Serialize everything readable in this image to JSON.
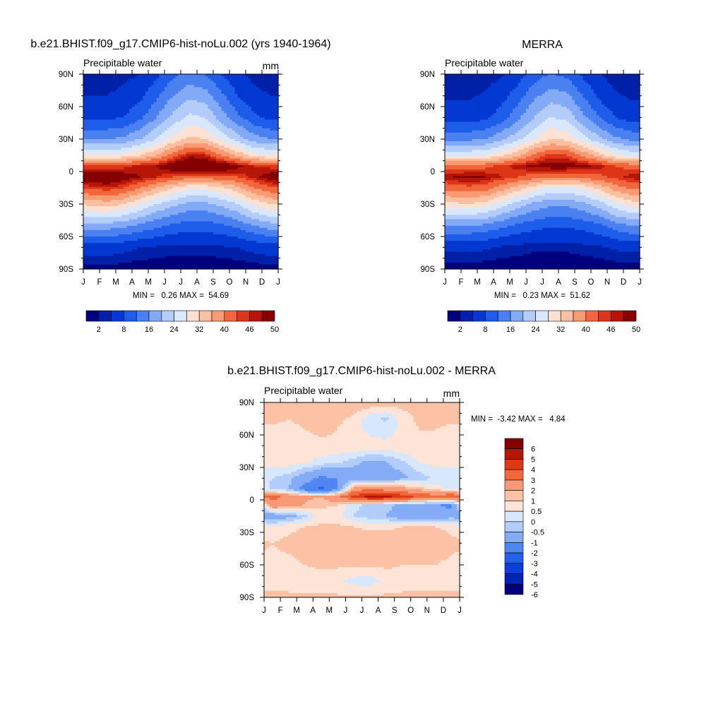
{
  "colors": {
    "seq_palette": [
      "#00007f",
      "#0020a8",
      "#0339d0",
      "#1e5cea",
      "#4a80f0",
      "#82aaf6",
      "#b3ccfa",
      "#d9e8fc",
      "#fde2d3",
      "#fcbfa0",
      "#f89a72",
      "#f2663c",
      "#dd3518",
      "#b51607",
      "#860000"
    ],
    "diff_palette": [
      "#00007f",
      "#0024b4",
      "#0a40d8",
      "#2460ec",
      "#4f86f2",
      "#84acf6",
      "#b3cdfa",
      "#d8e8fc",
      "#fde4d6",
      "#fcc2a6",
      "#f79a75",
      "#f0693d",
      "#dc3a16",
      "#b51707",
      "#860000"
    ]
  },
  "chart_data": [
    {
      "type": "heatmap",
      "title": "b.e21.BHIST.f09_g17.CMIP6-hist-noLu.002 (yrs 1940-1964)",
      "left_label": "Precipitable water",
      "right_label": "mm",
      "x_ticks": [
        "J",
        "F",
        "M",
        "A",
        "M",
        "J",
        "J",
        "A",
        "S",
        "O",
        "N",
        "D",
        "J"
      ],
      "y_ticks": [
        "90N",
        "60N",
        "30N",
        "0",
        "30S",
        "60S",
        "90S"
      ],
      "stats": "MIN =   0.26 MAX =  54.69",
      "min": 0.26,
      "max": 54.69,
      "colorbar_levels": [
        0,
        2,
        4,
        8,
        12,
        16,
        20,
        24,
        28,
        32,
        36,
        40,
        44,
        46,
        48,
        50
      ],
      "colorbar_labels": [
        "2",
        "8",
        "16",
        "24",
        "32",
        "40",
        "46",
        "50"
      ],
      "field": {
        "lat_nodes": [
          90,
          70,
          50,
          30,
          15,
          5,
          -5,
          -15,
          -30,
          -50,
          -70,
          -90
        ],
        "months": [
          "Jan",
          "Feb",
          "Mar",
          "Apr",
          "May",
          "Jun",
          "Jul",
          "Aug",
          "Sep",
          "Oct",
          "Nov",
          "Dec"
        ],
        "values": [
          [
            2.5,
            2.5,
            3,
            4,
            7,
            11,
            13,
            12,
            8,
            5,
            3,
            2.5
          ],
          [
            4,
            4,
            5,
            7,
            11,
            16,
            19,
            18,
            13,
            8,
            5,
            4
          ],
          [
            7,
            7,
            8,
            11,
            16,
            21,
            25,
            24,
            18,
            13,
            9,
            7
          ],
          [
            16,
            16,
            17,
            20,
            24,
            29,
            33,
            32,
            27,
            22,
            18,
            16
          ],
          [
            28,
            28,
            29,
            32,
            36,
            42,
            47,
            46,
            40,
            35,
            30,
            28
          ],
          [
            44,
            44,
            45,
            47,
            48,
            51,
            53,
            53,
            52,
            49,
            46,
            45
          ],
          [
            51,
            52,
            50,
            48,
            46,
            44,
            42,
            42,
            43,
            44,
            47,
            50
          ],
          [
            45,
            46,
            44,
            40,
            36,
            32,
            29,
            29,
            31,
            35,
            40,
            43
          ],
          [
            33,
            34,
            32,
            28,
            24,
            21,
            19,
            19,
            21,
            24,
            29,
            32
          ],
          [
            18,
            18,
            17,
            15,
            13,
            11,
            10,
            10,
            11,
            13,
            16,
            18
          ],
          [
            6,
            6,
            5,
            4,
            3.5,
            3,
            3,
            3,
            3.5,
            4,
            5,
            6
          ],
          [
            1,
            1,
            0.8,
            0.6,
            0.5,
            0.4,
            0.3,
            0.3,
            0.4,
            0.6,
            0.8,
            1
          ]
        ]
      }
    },
    {
      "type": "heatmap",
      "title": "MERRA",
      "left_label": "Precipitable water",
      "right_label": "",
      "x_ticks": [
        "J",
        "F",
        "M",
        "A",
        "M",
        "J",
        "J",
        "A",
        "S",
        "O",
        "N",
        "D",
        "J"
      ],
      "y_ticks": [
        "90N",
        "60N",
        "30N",
        "0",
        "30S",
        "60S",
        "90S"
      ],
      "stats": "MIN =   0.23 MAX =  51.62",
      "min": 0.23,
      "max": 51.62,
      "colorbar_levels": [
        0,
        2,
        4,
        8,
        12,
        16,
        20,
        24,
        28,
        32,
        36,
        40,
        44,
        46,
        48,
        50
      ],
      "colorbar_labels": [
        "2",
        "8",
        "16",
        "24",
        "32",
        "40",
        "46",
        "50"
      ],
      "field": {
        "lat_nodes": [
          90,
          70,
          50,
          30,
          15,
          5,
          -5,
          -15,
          -30,
          -50,
          -70,
          -90
        ],
        "months": [
          "Jan",
          "Feb",
          "Mar",
          "Apr",
          "May",
          "Jun",
          "Jul",
          "Aug",
          "Sep",
          "Oct",
          "Nov",
          "Dec"
        ],
        "values": [
          [
            2,
            2,
            2.5,
            3.5,
            6,
            10,
            12,
            11,
            7,
            4,
            2.5,
            2
          ],
          [
            3.5,
            3.5,
            4.5,
            6.5,
            10,
            15,
            18,
            17,
            12,
            7,
            4.5,
            3.5
          ],
          [
            6,
            6,
            7,
            10,
            15,
            20,
            24,
            23,
            17,
            12,
            8,
            6
          ],
          [
            15,
            15,
            16,
            19,
            23,
            28,
            32,
            31,
            26,
            21,
            17,
            15
          ],
          [
            27,
            27,
            28,
            31,
            35,
            41,
            45,
            44,
            39,
            34,
            29,
            27
          ],
          [
            42,
            42,
            43,
            45,
            47,
            49,
            50,
            50,
            49,
            47,
            44,
            43
          ],
          [
            48,
            49,
            48,
            46,
            44,
            42,
            40,
            40,
            41,
            43,
            45,
            47
          ],
          [
            42,
            43,
            42,
            38,
            34,
            30,
            27,
            27,
            29,
            33,
            38,
            41
          ],
          [
            31,
            32,
            30,
            26,
            22,
            19,
            17,
            17,
            19,
            22,
            27,
            30
          ],
          [
            16,
            16,
            15,
            13,
            11,
            9.5,
            8.5,
            8.5,
            9.5,
            11,
            14,
            16
          ],
          [
            5,
            5,
            4.5,
            3.5,
            3,
            2.5,
            2.5,
            2.5,
            3,
            3.5,
            4.5,
            5
          ],
          [
            0.8,
            0.8,
            0.6,
            0.5,
            0.4,
            0.3,
            0.25,
            0.25,
            0.3,
            0.5,
            0.7,
            0.8
          ]
        ]
      }
    },
    {
      "type": "heatmap",
      "title": "b.e21.BHIST.f09_g17.CMIP6-hist-noLu.002 - MERRA",
      "left_label": "Precipitable water",
      "right_label": "mm",
      "x_ticks": [
        "J",
        "F",
        "M",
        "A",
        "M",
        "J",
        "J",
        "A",
        "S",
        "O",
        "N",
        "D",
        "J"
      ],
      "y_ticks": [
        "90N",
        "60N",
        "30N",
        "0",
        "30S",
        "60S",
        "90S"
      ],
      "stats": "MIN =  -3.42 MAX =   4.84",
      "min": -3.42,
      "max": 4.84,
      "colorbar_levels": [
        -7,
        -6,
        -5,
        -4,
        -3,
        -2,
        -1,
        -0.5,
        0,
        0.5,
        1,
        2,
        3,
        4,
        5,
        6,
        7
      ],
      "colorbar_labels": [
        "6",
        "5",
        "4",
        "3",
        "2",
        "1",
        "0.5",
        "0",
        "-0.5",
        "-1",
        "-2",
        "-3",
        "-4",
        "-5",
        "-6"
      ],
      "field": {
        "lat_nodes": [
          90,
          75,
          65,
          50,
          35,
          20,
          10,
          3,
          -5,
          -15,
          -25,
          -40,
          -60,
          -75,
          -90
        ],
        "months": [
          "Jan",
          "Feb",
          "Mar",
          "Apr",
          "May",
          "Jun",
          "Jul",
          "Aug",
          "Sep",
          "Oct",
          "Nov",
          "Dec"
        ],
        "values": [
          [
            0.6,
            0.6,
            0.7,
            0.8,
            0.7,
            0.9,
            0.9,
            0.8,
            0.7,
            0.6,
            0.6,
            0.6
          ],
          [
            0.6,
            0.5,
            0.6,
            0.7,
            0.6,
            0.4,
            -0.3,
            -0.6,
            0.3,
            0.6,
            0.6,
            0.6
          ],
          [
            0.4,
            0.4,
            0.5,
            0.6,
            0.5,
            0.2,
            -0.2,
            -0.4,
            0.2,
            0.5,
            0.5,
            0.4
          ],
          [
            0.2,
            0.3,
            0.3,
            0.4,
            0.4,
            0.5,
            0.3,
            0.3,
            0.5,
            0.4,
            0.3,
            0.3
          ],
          [
            0.2,
            0.3,
            0.1,
            -0.2,
            -0.4,
            -0.8,
            -1.2,
            -1.0,
            -0.6,
            0.0,
            0.2,
            0.2
          ],
          [
            -0.5,
            -0.8,
            -1.5,
            -2.2,
            -2.0,
            -1.5,
            -1.6,
            -1.5,
            -1.2,
            -0.8,
            -0.4,
            -0.4
          ],
          [
            -0.6,
            -1.0,
            -2.5,
            -3.3,
            -2.2,
            1.5,
            1.8,
            1.6,
            1.3,
            0.8,
            0.3,
            -0.2
          ],
          [
            2.2,
            1.8,
            1.2,
            1.0,
            1.8,
            3.2,
            4.5,
            4.2,
            3.5,
            2.8,
            2.5,
            3.0
          ],
          [
            1.8,
            1.4,
            0.9,
            0.6,
            0.5,
            -0.4,
            -0.6,
            -0.8,
            -1.2,
            -1.5,
            -1.8,
            -2.3
          ],
          [
            -1.8,
            -1.3,
            -0.6,
            0.3,
            0.2,
            -0.5,
            -0.8,
            -1.0,
            -1.6,
            -2.0,
            -2.0,
            -1.2
          ],
          [
            0.2,
            0.4,
            0.5,
            0.6,
            0.6,
            0.5,
            0.4,
            0.4,
            0.5,
            0.5,
            0.5,
            0.4
          ],
          [
            0.5,
            0.6,
            0.7,
            0.8,
            0.8,
            0.8,
            0.8,
            0.8,
            0.8,
            0.8,
            0.8,
            0.6
          ],
          [
            0.4,
            0.4,
            0.5,
            0.6,
            0.6,
            0.6,
            0.6,
            0.6,
            0.5,
            0.5,
            0.5,
            0.4
          ],
          [
            0.3,
            0.3,
            0.2,
            0.2,
            0.1,
            -0.2,
            -0.3,
            0.2,
            0.3,
            0.3,
            0.3,
            0.3
          ],
          [
            0.6,
            0.6,
            0.6,
            0.6,
            0.6,
            0.6,
            0.6,
            0.6,
            0.6,
            0.6,
            0.6,
            0.6
          ]
        ]
      }
    }
  ]
}
